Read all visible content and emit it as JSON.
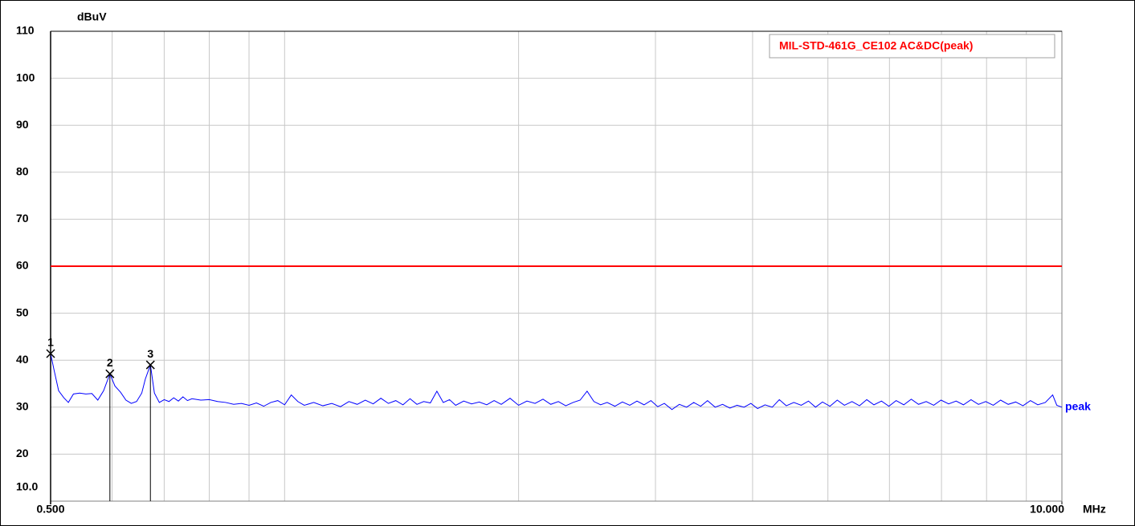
{
  "chart_data": {
    "type": "line",
    "y_label": "dBuV",
    "x_unit": "MHz",
    "xscale": "log",
    "xlim": [
      0.5,
      10
    ],
    "ylim": [
      10,
      110
    ],
    "xticks": [
      {
        "value": 0.5,
        "label": "0.500"
      },
      {
        "value": 10,
        "label": "10.000"
      }
    ],
    "x_grid": [
      0.6,
      0.7,
      0.8,
      0.9,
      1,
      2,
      3,
      4,
      5,
      6,
      7,
      8,
      9
    ],
    "yticks": [
      {
        "value": 10,
        "label": "10.0"
      },
      20,
      30,
      40,
      50,
      60,
      70,
      80,
      90,
      100,
      110
    ],
    "grid": true,
    "limit": {
      "name": "MIL-STD-461G_CE102 AC&DC(peak)",
      "value": 60,
      "color": "#ff0000"
    },
    "legend": "top-right",
    "series": [
      {
        "name": "peak",
        "color": "#0000ff",
        "x": [
          0.5,
          0.505,
          0.512,
          0.52,
          0.527,
          0.535,
          0.545,
          0.555,
          0.565,
          0.575,
          0.585,
          0.596,
          0.605,
          0.615,
          0.625,
          0.635,
          0.645,
          0.655,
          0.662,
          0.672,
          0.68,
          0.69,
          0.7,
          0.71,
          0.72,
          0.73,
          0.74,
          0.75,
          0.76,
          0.78,
          0.8,
          0.82,
          0.84,
          0.86,
          0.88,
          0.9,
          0.92,
          0.94,
          0.96,
          0.98,
          1.0,
          1.02,
          1.04,
          1.06,
          1.09,
          1.12,
          1.15,
          1.18,
          1.21,
          1.24,
          1.27,
          1.3,
          1.33,
          1.36,
          1.39,
          1.42,
          1.45,
          1.48,
          1.51,
          1.54,
          1.57,
          1.6,
          1.63,
          1.66,
          1.7,
          1.74,
          1.78,
          1.82,
          1.86,
          1.9,
          1.95,
          2.0,
          2.05,
          2.1,
          2.15,
          2.2,
          2.25,
          2.3,
          2.35,
          2.4,
          2.45,
          2.5,
          2.55,
          2.6,
          2.66,
          2.72,
          2.78,
          2.84,
          2.9,
          2.96,
          3.02,
          3.08,
          3.15,
          3.22,
          3.29,
          3.36,
          3.43,
          3.5,
          3.58,
          3.66,
          3.74,
          3.82,
          3.9,
          3.98,
          4.06,
          4.15,
          4.24,
          4.33,
          4.42,
          4.52,
          4.62,
          4.72,
          4.82,
          4.92,
          5.03,
          5.14,
          5.25,
          5.37,
          5.49,
          5.61,
          5.73,
          5.86,
          5.99,
          6.12,
          6.26,
          6.4,
          6.54,
          6.69,
          6.84,
          6.99,
          7.15,
          7.31,
          7.47,
          7.64,
          7.81,
          7.98,
          8.16,
          8.34,
          8.53,
          8.72,
          8.91,
          9.11,
          9.31,
          9.52,
          9.73,
          9.85,
          10.0
        ],
        "values": [
          41.4,
          38,
          33.5,
          32,
          31,
          32.8,
          33,
          32.8,
          32.9,
          31.5,
          33.5,
          37.1,
          34.5,
          33.2,
          31.5,
          30.8,
          31.2,
          33,
          36,
          39.0,
          33,
          31,
          31.6,
          31.2,
          32,
          31.3,
          32.2,
          31.4,
          31.8,
          31.5,
          31.6,
          31.2,
          31.0,
          30.6,
          30.8,
          30.4,
          30.9,
          30.2,
          31.0,
          31.4,
          30.5,
          32.6,
          31.2,
          30.4,
          31.0,
          30.3,
          30.8,
          30.1,
          31.2,
          30.6,
          31.5,
          30.7,
          31.9,
          30.8,
          31.4,
          30.5,
          31.8,
          30.6,
          31.2,
          30.9,
          33.4,
          31.0,
          31.6,
          30.4,
          31.3,
          30.7,
          31.1,
          30.5,
          31.4,
          30.6,
          31.9,
          30.4,
          31.3,
          30.8,
          31.7,
          30.6,
          31.2,
          30.3,
          31.0,
          31.5,
          33.4,
          31.2,
          30.5,
          31.0,
          30.2,
          31.1,
          30.4,
          31.3,
          30.5,
          31.4,
          30.1,
          30.8,
          29.5,
          30.6,
          30.0,
          31.0,
          30.2,
          31.4,
          30.0,
          30.6,
          29.8,
          30.4,
          30.0,
          30.8,
          29.7,
          30.5,
          30.0,
          31.6,
          30.3,
          31.0,
          30.4,
          31.3,
          30.0,
          31.1,
          30.2,
          31.5,
          30.4,
          31.2,
          30.3,
          31.6,
          30.5,
          31.3,
          30.2,
          31.4,
          30.5,
          31.7,
          30.6,
          31.2,
          30.4,
          31.5,
          30.7,
          31.3,
          30.5,
          31.6,
          30.6,
          31.2,
          30.4,
          31.5,
          30.6,
          31.1,
          30.3,
          31.4,
          30.5,
          31.0,
          32.6,
          30.4,
          30.0
        ]
      }
    ],
    "markers": [
      {
        "label": "1",
        "x": 0.5,
        "y": 41.4
      },
      {
        "label": "2",
        "x": 0.596,
        "y": 37.1
      },
      {
        "label": "3",
        "x": 0.672,
        "y": 39.0
      }
    ]
  }
}
